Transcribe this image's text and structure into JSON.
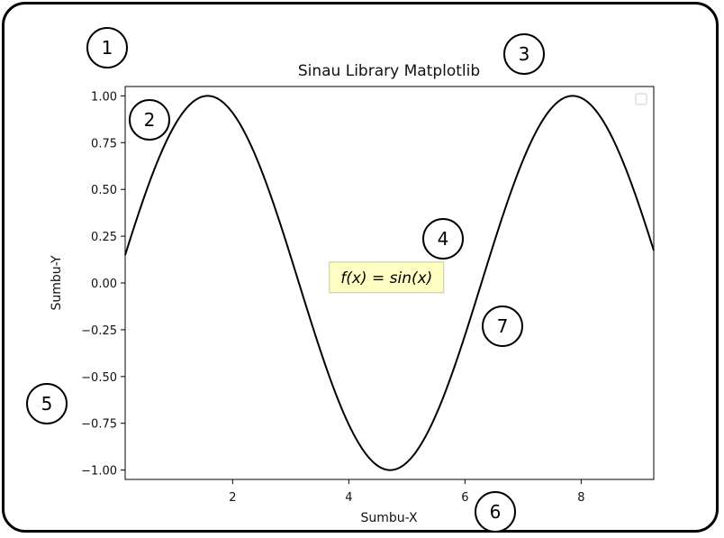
{
  "chart_data": {
    "type": "line",
    "title": "Sinau Library Matplotlib",
    "xlabel": "Sumbu-X",
    "ylabel": "Sumbu-Y",
    "xlim": [
      0.15,
      9.25
    ],
    "ylim": [
      -1.05,
      1.05
    ],
    "x_ticks": [
      2,
      4,
      6,
      8
    ],
    "x_tick_labels": [
      "2",
      "4",
      "6",
      "8"
    ],
    "y_ticks": [
      1.0,
      0.75,
      0.5,
      0.25,
      0.0,
      -0.25,
      -0.5,
      -0.75,
      -1.0
    ],
    "y_tick_labels": [
      "1.00",
      "0.75",
      "0.50",
      "0.25",
      "0.00",
      "−0.25",
      "−0.50",
      "−0.75",
      "−1.00"
    ],
    "series": [
      {
        "name": "sin(x)",
        "function": "sin",
        "x_range": [
          0.15,
          9.25
        ],
        "color": "#000000"
      }
    ],
    "annotation": {
      "x": 4.65,
      "y": 0.03,
      "text_prefix": "f",
      "text_body": "(x) = sin(x)",
      "box_color": "#ffffc4"
    },
    "legend": {
      "placement": "upper right",
      "entries": []
    },
    "grid": false
  },
  "callouts": [
    "1",
    "2",
    "3",
    "4",
    "5",
    "6",
    "7"
  ]
}
